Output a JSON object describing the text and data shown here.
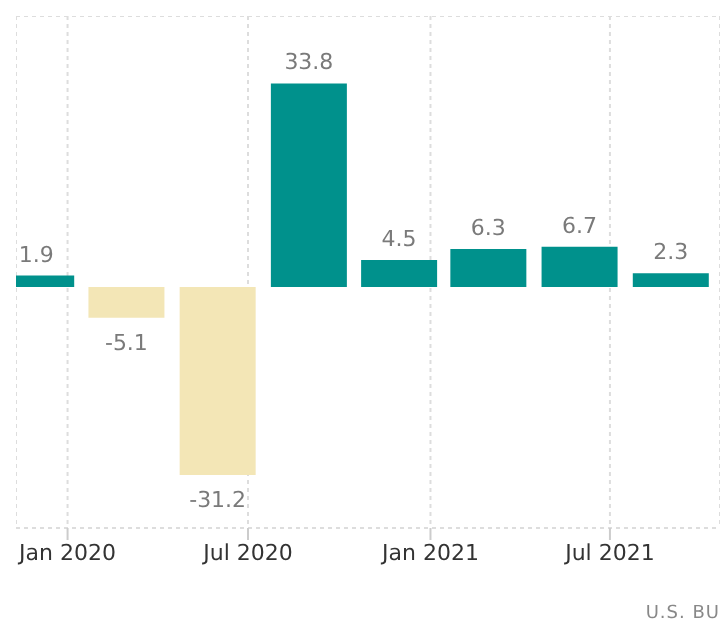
{
  "chart_data": {
    "type": "bar",
    "x": [
      "2019-12",
      "2020-03",
      "2020-06",
      "2020-09",
      "2020-12",
      "2021-03",
      "2021-06",
      "2021-09"
    ],
    "values": [
      1.9,
      -5.1,
      -31.2,
      33.8,
      4.5,
      6.3,
      6.7,
      2.3
    ],
    "colors": [
      "#00918c",
      "#f3e6b6",
      "#f3e6b6",
      "#00918c",
      "#00918c",
      "#00918c",
      "#00918c",
      "#00918c"
    ],
    "data_labels": true,
    "xlim": [
      "2019-11-10",
      "2021-10-20"
    ],
    "xticks": [
      {
        "value": "2020-01",
        "label": "Jan 2020"
      },
      {
        "value": "2020-07",
        "label": "Jul 2020"
      },
      {
        "value": "2021-01",
        "label": "Jan 2021"
      },
      {
        "value": "2021-07",
        "label": "Jul 2021"
      }
    ],
    "ylim": [
      -40,
      45
    ],
    "tick_labels": "x",
    "grid": true,
    "annotations": [
      "U.S. BU"
    ]
  }
}
